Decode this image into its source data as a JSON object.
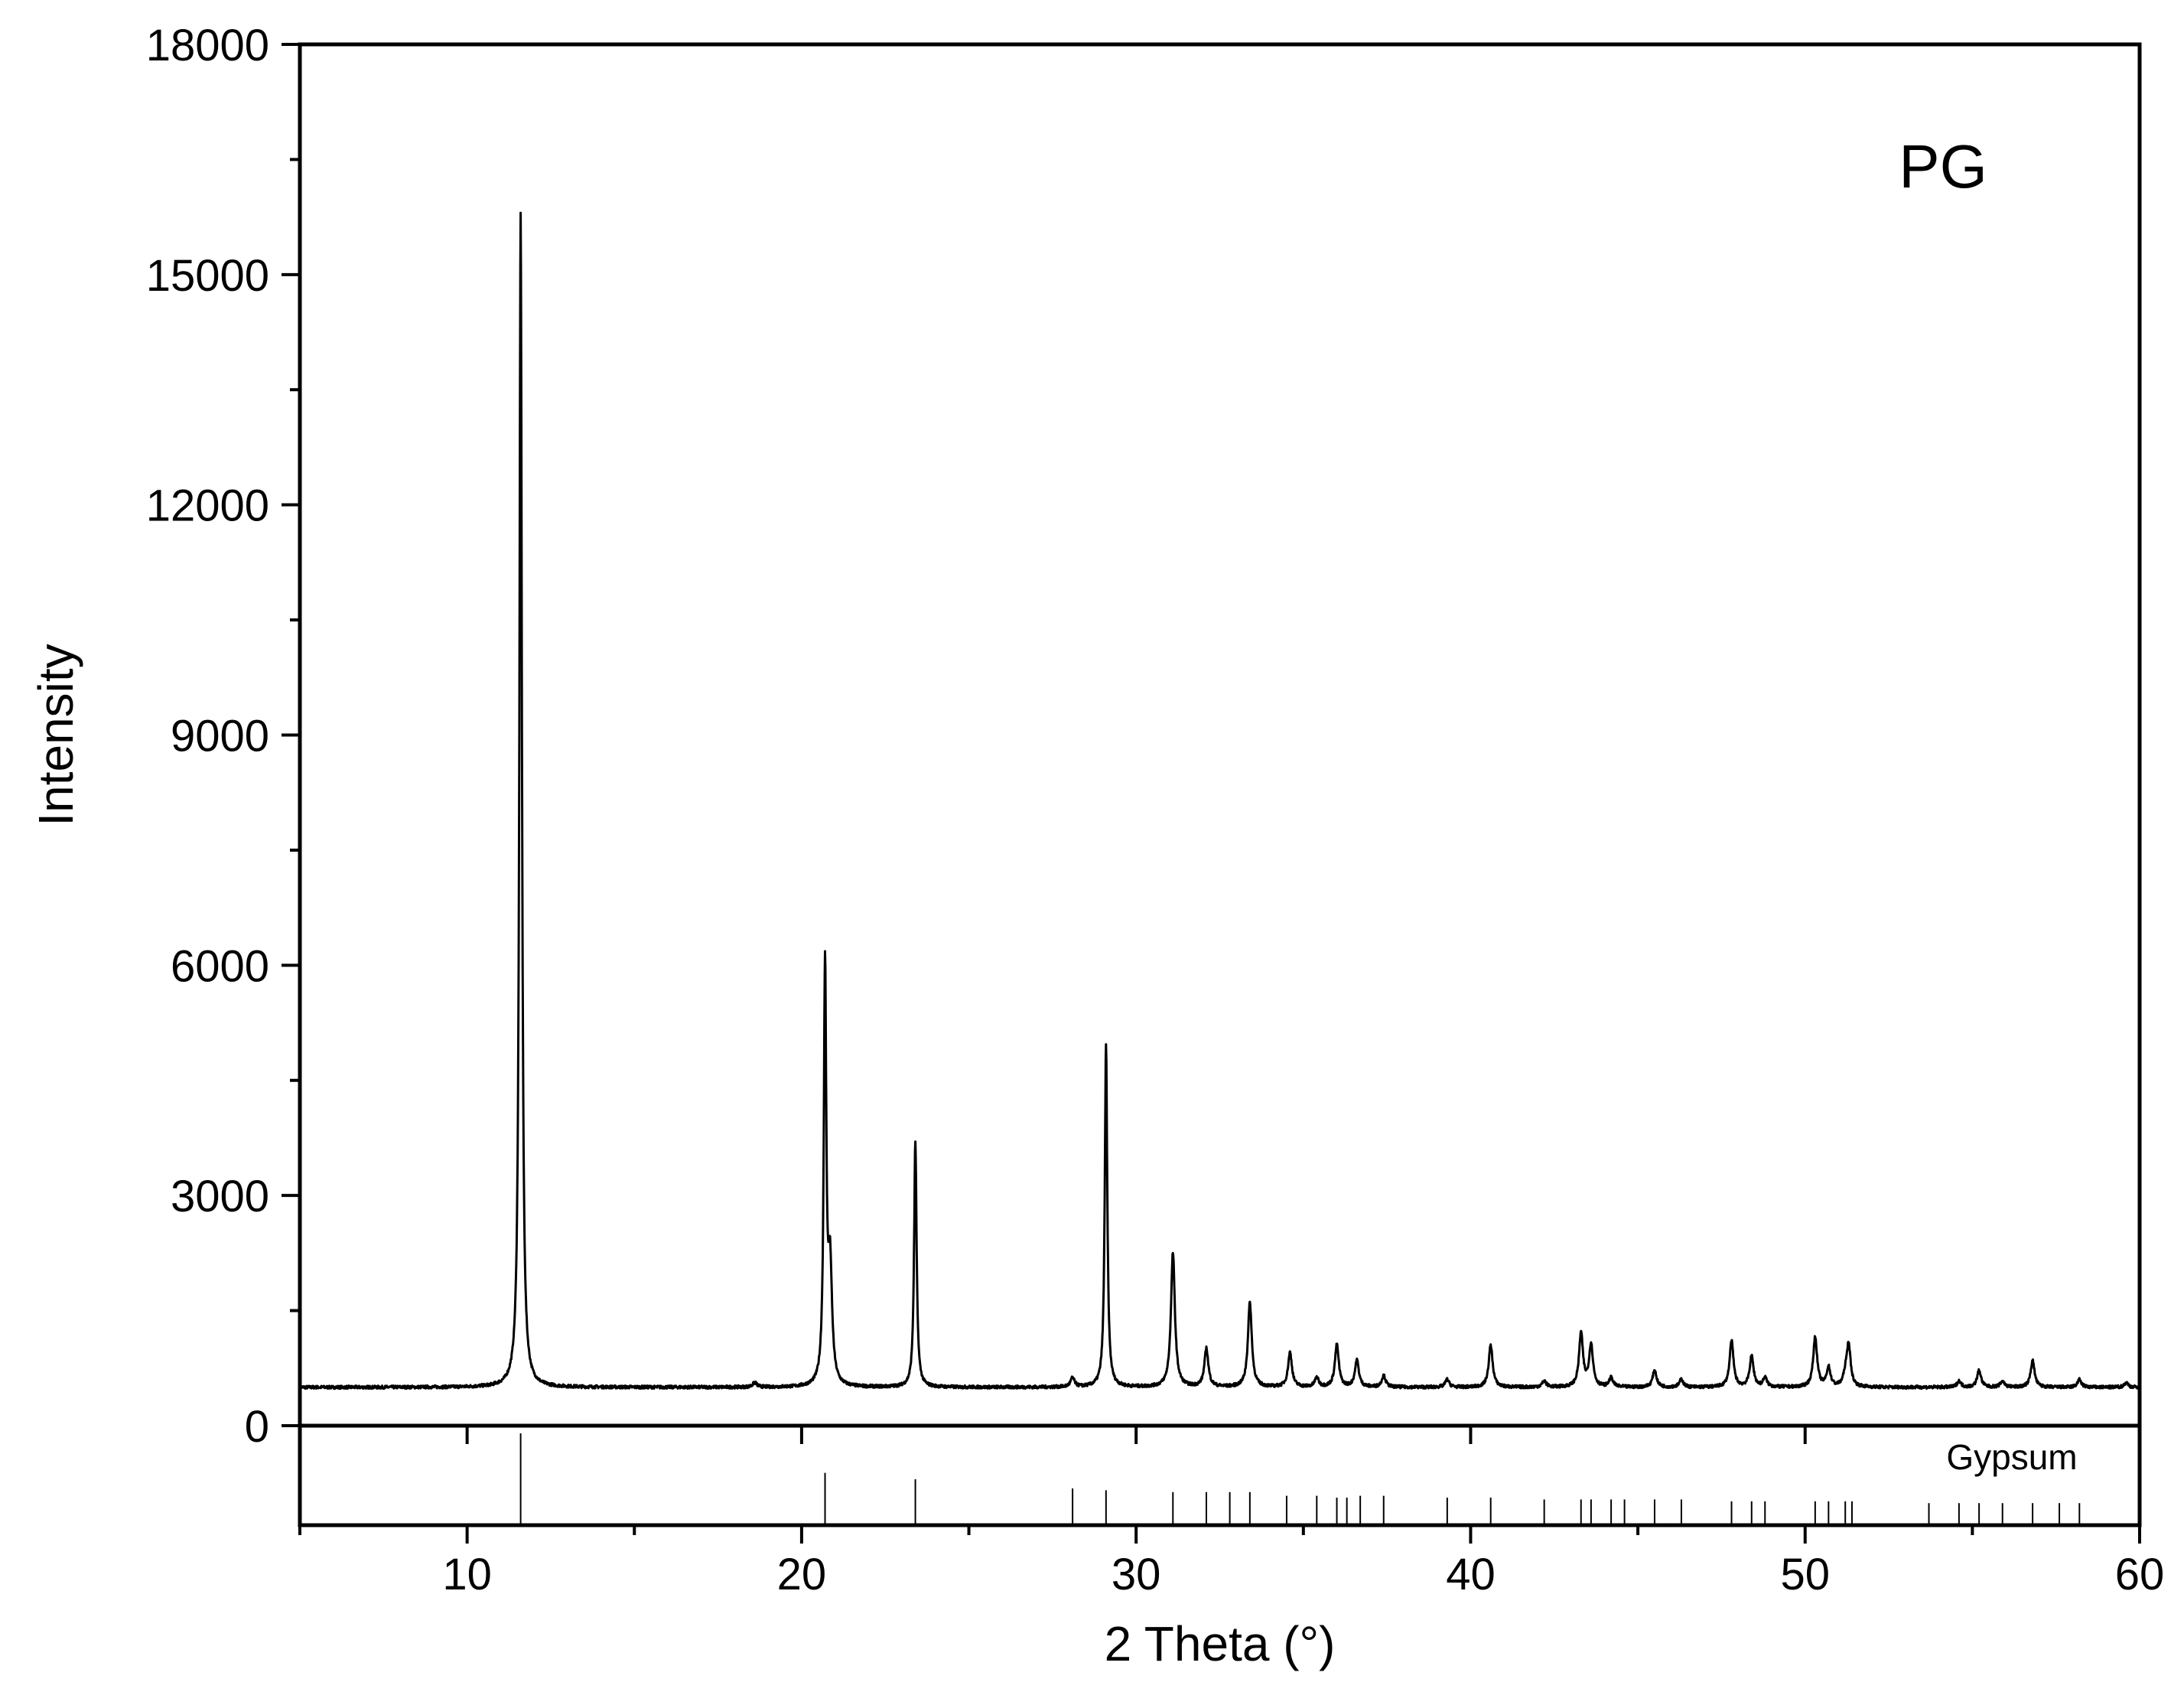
{
  "chart_data": {
    "type": "line",
    "title": "",
    "xlabel": "2 Theta (°)",
    "ylabel": "Intensity",
    "xlim": [
      5,
      60
    ],
    "ylim": [
      0,
      18000
    ],
    "x_ticks": [
      10,
      20,
      30,
      40,
      50,
      60
    ],
    "x_tick_labels": [
      "10",
      "20",
      "30",
      "40",
      "50",
      "60"
    ],
    "x_minor_ticks": [
      5,
      15,
      25,
      35,
      45,
      55
    ],
    "y_ticks": [
      0,
      3000,
      6000,
      9000,
      12000,
      15000,
      18000
    ],
    "y_tick_labels": [
      "0",
      "3000",
      "6000",
      "9000",
      "12000",
      "15000",
      "18000"
    ],
    "grid": false,
    "annotation": "PG",
    "line_color": "#000000",
    "baseline": 500,
    "series": [
      {
        "peaks": [
          {
            "x": 11.6,
            "y": 15800
          },
          {
            "x": 18.6,
            "y": 560
          },
          {
            "x": 20.7,
            "y": 5900
          },
          {
            "x": 20.85,
            "y": 2000
          },
          {
            "x": 23.4,
            "y": 3700
          },
          {
            "x": 28.1,
            "y": 620
          },
          {
            "x": 29.1,
            "y": 4950
          },
          {
            "x": 31.1,
            "y": 2250
          },
          {
            "x": 32.1,
            "y": 1000
          },
          {
            "x": 33.4,
            "y": 1600
          },
          {
            "x": 34.6,
            "y": 950
          },
          {
            "x": 35.4,
            "y": 620
          },
          {
            "x": 36.0,
            "y": 1050
          },
          {
            "x": 36.6,
            "y": 850
          },
          {
            "x": 37.4,
            "y": 650
          },
          {
            "x": 39.3,
            "y": 600
          },
          {
            "x": 40.6,
            "y": 1050
          },
          {
            "x": 42.2,
            "y": 580
          },
          {
            "x": 43.3,
            "y": 1200
          },
          {
            "x": 43.6,
            "y": 1050
          },
          {
            "x": 44.2,
            "y": 620
          },
          {
            "x": 45.5,
            "y": 720
          },
          {
            "x": 46.3,
            "y": 600
          },
          {
            "x": 47.8,
            "y": 1100
          },
          {
            "x": 48.4,
            "y": 900
          },
          {
            "x": 48.8,
            "y": 620
          },
          {
            "x": 50.3,
            "y": 1150
          },
          {
            "x": 50.7,
            "y": 750
          },
          {
            "x": 51.2,
            "y": 620
          },
          {
            "x": 51.3,
            "y": 1050
          },
          {
            "x": 54.6,
            "y": 580
          },
          {
            "x": 55.2,
            "y": 720
          },
          {
            "x": 55.9,
            "y": 580
          },
          {
            "x": 56.8,
            "y": 850
          },
          {
            "x": 58.2,
            "y": 600
          },
          {
            "x": 59.6,
            "y": 560
          }
        ]
      }
    ],
    "reference": {
      "label": "Gypsum",
      "sticks": [
        {
          "x": 11.6,
          "h": 1.0
        },
        {
          "x": 20.7,
          "h": 0.57
        },
        {
          "x": 23.4,
          "h": 0.5
        },
        {
          "x": 28.1,
          "h": 0.4
        },
        {
          "x": 29.1,
          "h": 0.38
        },
        {
          "x": 31.1,
          "h": 0.36
        },
        {
          "x": 32.1,
          "h": 0.36
        },
        {
          "x": 32.8,
          "h": 0.36
        },
        {
          "x": 33.4,
          "h": 0.36
        },
        {
          "x": 34.5,
          "h": 0.32
        },
        {
          "x": 35.4,
          "h": 0.32
        },
        {
          "x": 36.0,
          "h": 0.3
        },
        {
          "x": 36.3,
          "h": 0.3
        },
        {
          "x": 36.7,
          "h": 0.32
        },
        {
          "x": 37.4,
          "h": 0.32
        },
        {
          "x": 39.3,
          "h": 0.3
        },
        {
          "x": 40.6,
          "h": 0.3
        },
        {
          "x": 42.2,
          "h": 0.28
        },
        {
          "x": 43.3,
          "h": 0.28
        },
        {
          "x": 43.6,
          "h": 0.28
        },
        {
          "x": 44.2,
          "h": 0.28
        },
        {
          "x": 44.6,
          "h": 0.28
        },
        {
          "x": 45.5,
          "h": 0.28
        },
        {
          "x": 46.3,
          "h": 0.28
        },
        {
          "x": 47.8,
          "h": 0.26
        },
        {
          "x": 48.4,
          "h": 0.26
        },
        {
          "x": 48.8,
          "h": 0.26
        },
        {
          "x": 50.3,
          "h": 0.26
        },
        {
          "x": 50.7,
          "h": 0.26
        },
        {
          "x": 51.2,
          "h": 0.26
        },
        {
          "x": 51.4,
          "h": 0.26
        },
        {
          "x": 53.7,
          "h": 0.24
        },
        {
          "x": 54.6,
          "h": 0.24
        },
        {
          "x": 55.2,
          "h": 0.24
        },
        {
          "x": 55.9,
          "h": 0.24
        },
        {
          "x": 56.8,
          "h": 0.24
        },
        {
          "x": 57.6,
          "h": 0.24
        },
        {
          "x": 58.2,
          "h": 0.24
        }
      ]
    }
  }
}
